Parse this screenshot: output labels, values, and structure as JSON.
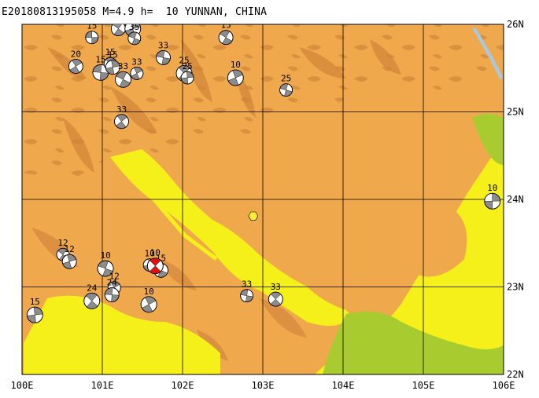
{
  "header": {
    "title": "E20180813195058 M=4.9 h=  10 YUNNAN, CHINA"
  },
  "map": {
    "lon_range": [
      100,
      106
    ],
    "lat_range": [
      22,
      26
    ],
    "colors": {
      "background": "#f0a84c",
      "dark_relief": "#d48a3e",
      "lowland_yellow": "#f5ef1a",
      "lowland_green": "#a8cc30",
      "grid": "#000000",
      "lake": "#a8c8e0",
      "epicenter": "#ffee30"
    },
    "x_ticks": [
      "100E",
      "101E",
      "102E",
      "103E",
      "104E",
      "105E",
      "106E"
    ],
    "y_ticks": [
      "26N",
      "25N",
      "24N",
      "23N",
      "22N"
    ],
    "epicenter": {
      "lon": 102.88,
      "lat": 23.81,
      "icon": "hexagon-icon"
    },
    "mechanisms": [
      {
        "lon": 100.87,
        "lat": 25.85,
        "label": "15"
      },
      {
        "lon": 101.2,
        "lat": 25.95,
        "label": "33"
      },
      {
        "lon": 101.38,
        "lat": 25.95,
        "label": "35"
      },
      {
        "lon": 101.4,
        "lat": 25.84,
        "label": "35"
      },
      {
        "lon": 100.67,
        "lat": 25.52,
        "label": "20"
      },
      {
        "lon": 100.98,
        "lat": 25.45,
        "label": "15"
      },
      {
        "lon": 101.1,
        "lat": 25.55,
        "label": "15"
      },
      {
        "lon": 101.13,
        "lat": 25.51,
        "label": "15"
      },
      {
        "lon": 101.26,
        "lat": 25.37,
        "label": "33"
      },
      {
        "lon": 101.43,
        "lat": 25.44,
        "label": "33"
      },
      {
        "lon": 101.76,
        "lat": 25.62,
        "label": "33"
      },
      {
        "lon": 102.02,
        "lat": 25.44,
        "label": "25"
      },
      {
        "lon": 102.06,
        "lat": 25.39,
        "label": "25"
      },
      {
        "lon": 102.54,
        "lat": 25.85,
        "label": "15"
      },
      {
        "lon": 102.66,
        "lat": 25.39,
        "label": "10"
      },
      {
        "lon": 103.29,
        "lat": 25.25,
        "label": "25"
      },
      {
        "lon": 101.24,
        "lat": 24.89,
        "label": "33"
      },
      {
        "lon": 105.86,
        "lat": 23.98,
        "label": "10"
      },
      {
        "lon": 100.51,
        "lat": 23.37,
        "label": "12"
      },
      {
        "lon": 100.59,
        "lat": 23.29,
        "label": "12"
      },
      {
        "lon": 101.04,
        "lat": 23.21,
        "label": "10"
      },
      {
        "lon": 101.15,
        "lat": 22.99,
        "label": "12"
      },
      {
        "lon": 101.12,
        "lat": 22.91,
        "label": "24"
      },
      {
        "lon": 100.87,
        "lat": 22.84,
        "label": "24"
      },
      {
        "lon": 101.59,
        "lat": 23.25,
        "label": "10"
      },
      {
        "lon": 101.73,
        "lat": 23.19,
        "label": "15"
      },
      {
        "lon": 101.58,
        "lat": 22.8,
        "label": "10"
      },
      {
        "lon": 102.8,
        "lat": 22.9,
        "label": "33"
      },
      {
        "lon": 103.16,
        "lat": 22.86,
        "label": "33"
      },
      {
        "lon": 100.16,
        "lat": 22.68,
        "label": "15"
      }
    ],
    "event_mechanism": {
      "lon": 101.66,
      "lat": 23.24,
      "label": "10"
    }
  }
}
